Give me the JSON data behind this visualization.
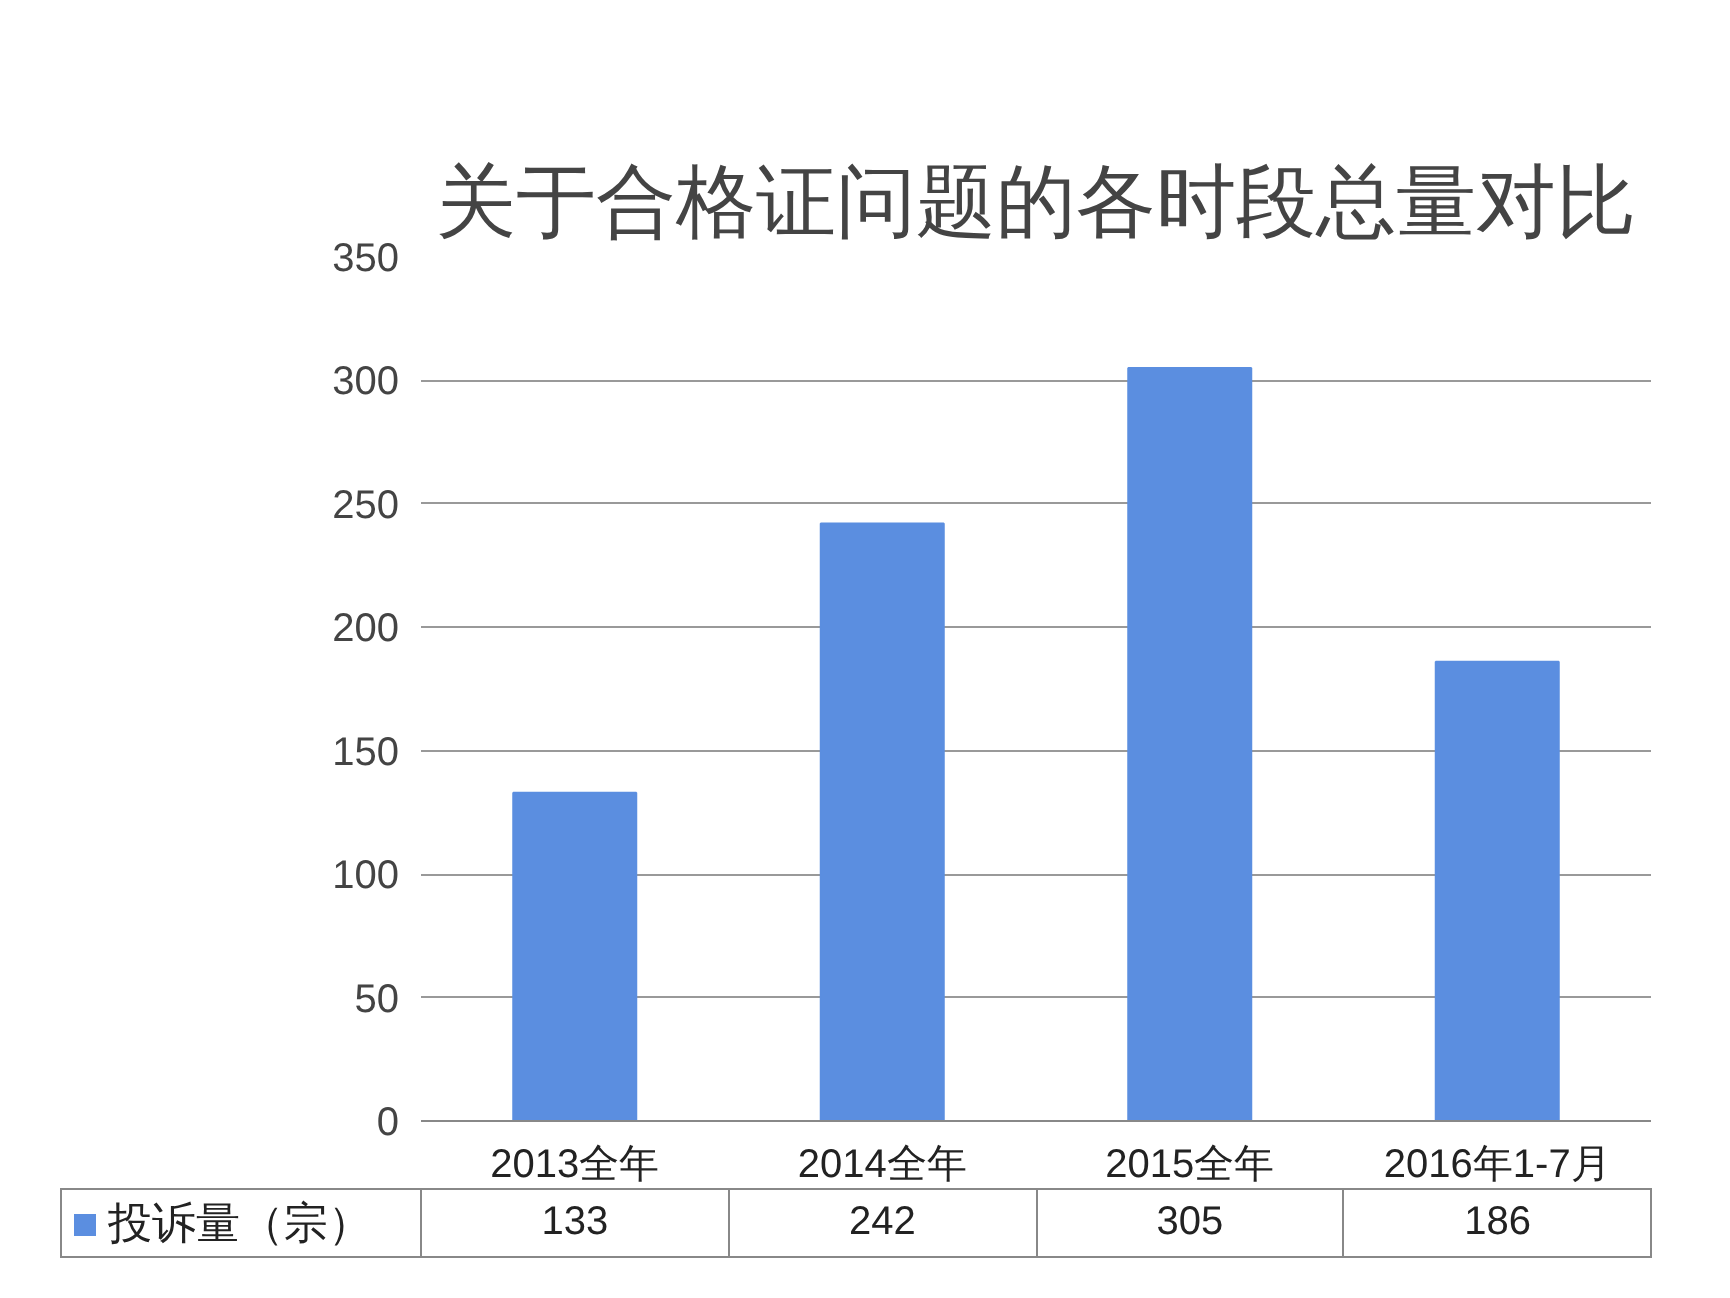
{
  "chart_data": {
    "type": "bar",
    "title": "关于合格证问题的各时段总量对比",
    "categories": [
      "2013全年",
      "2014全年",
      "2015全年",
      "2016年1-7月"
    ],
    "series": [
      {
        "name": "投诉量（宗）",
        "color": "#5b8ee0",
        "values": [
          133,
          242,
          305,
          186
        ],
        "value_labels": [
          "133",
          "242",
          "305",
          "186"
        ]
      }
    ],
    "ylim": [
      0,
      350
    ],
    "yticks": [
      0,
      50,
      100,
      150,
      200,
      250,
      300,
      350
    ],
    "grid": "y"
  }
}
